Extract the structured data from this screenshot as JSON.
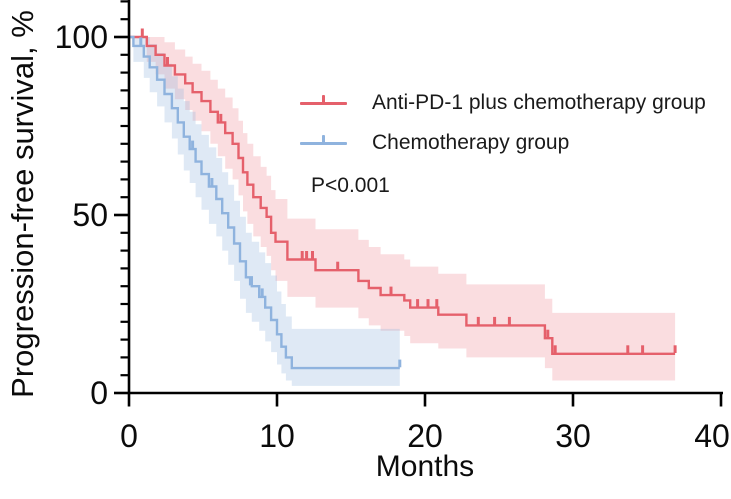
{
  "figure": {
    "ylabel": "Progression-free survival, %",
    "xlabel": "Months",
    "p_value": "P<0.001"
  },
  "legend": [
    {
      "label": "Anti-PD-1 plus chemotherapy group",
      "color": "#e5606b"
    },
    {
      "label": "Chemotherapy group",
      "color": "#8fb3de"
    }
  ],
  "chart_data": {
    "type": "line",
    "subtype": "kaplan-meier-step-with-ci",
    "title": "",
    "xlabel": "Months",
    "ylabel": "Progression-free survival, %",
    "xlim": [
      0,
      40
    ],
    "ylim": [
      0,
      111
    ],
    "xticks": [
      0,
      10,
      20,
      30,
      40
    ],
    "yticks": [
      0,
      50,
      100
    ],
    "y_minor_step": 5,
    "grid": false,
    "legend_position": "upper-right-inside",
    "annotations": [
      {
        "text": "P<0.001"
      }
    ],
    "series": [
      {
        "name": "Anti-PD-1 plus chemotherapy group",
        "color": "#e5606b",
        "band_color": "rgba(237,130,141,0.27)",
        "end_time": 36.9,
        "steps_t_s_ciu_cil": [
          [
            0,
            100,
            100,
            100
          ],
          [
            1.2,
            97.5,
            100,
            93
          ],
          [
            1.8,
            95,
            100,
            89.5
          ],
          [
            2.4,
            92,
            98.5,
            85.5
          ],
          [
            3.1,
            89.5,
            96.5,
            82.5
          ],
          [
            3.8,
            87,
            94.5,
            79.5
          ],
          [
            4.3,
            84.5,
            92.5,
            76.5
          ],
          [
            4.9,
            82,
            90.5,
            73.5
          ],
          [
            5.5,
            79,
            88,
            70
          ],
          [
            6.0,
            76,
            85.5,
            66.5
          ],
          [
            6.5,
            73,
            83,
            63
          ],
          [
            7.0,
            70,
            80,
            60
          ],
          [
            7.4,
            66,
            76.5,
            55.5
          ],
          [
            7.7,
            62,
            73,
            51
          ],
          [
            8.0,
            58.5,
            70,
            47.5
          ],
          [
            8.4,
            55,
            66.5,
            44
          ],
          [
            8.9,
            52,
            63.5,
            41
          ],
          [
            9.3,
            49.5,
            61,
            38.5
          ],
          [
            9.6,
            45,
            57,
            34.5
          ],
          [
            9.9,
            42.5,
            54.5,
            31.5
          ],
          [
            10.7,
            37.5,
            49,
            27
          ],
          [
            12.6,
            34.5,
            46,
            24
          ],
          [
            15.5,
            31.5,
            43,
            21
          ],
          [
            16.2,
            29.5,
            41,
            19
          ],
          [
            17.0,
            27.5,
            39,
            17.5
          ],
          [
            18.6,
            26,
            37.5,
            16
          ],
          [
            19.0,
            24,
            35.5,
            14
          ],
          [
            20.9,
            22,
            33.5,
            12.5
          ],
          [
            22.8,
            19,
            30.5,
            10
          ],
          [
            28.1,
            15.4,
            26.5,
            7
          ],
          [
            28.6,
            11,
            22.5,
            3.5
          ]
        ],
        "censor_marks_t_s": [
          [
            0.9,
            100
          ],
          [
            2.6,
            92
          ],
          [
            6.2,
            76
          ],
          [
            11.7,
            37.5
          ],
          [
            12.0,
            37.5
          ],
          [
            12.4,
            37.5
          ],
          [
            14.1,
            34.5
          ],
          [
            17.7,
            27.5
          ],
          [
            19.5,
            24
          ],
          [
            20.2,
            24
          ],
          [
            20.8,
            24
          ],
          [
            23.6,
            19
          ],
          [
            24.7,
            19
          ],
          [
            25.7,
            19
          ],
          [
            28.3,
            15.4
          ],
          [
            28.8,
            11
          ],
          [
            33.7,
            11
          ],
          [
            34.7,
            11
          ],
          [
            36.9,
            11
          ]
        ]
      },
      {
        "name": "Chemotherapy group",
        "color": "#8fb3de",
        "band_color": "rgba(148,181,221,0.30)",
        "end_time": 18.3,
        "steps_t_s_ciu_cil": [
          [
            0,
            100,
            100,
            100
          ],
          [
            0.3,
            97.5,
            100,
            93
          ],
          [
            1.0,
            94.5,
            100,
            88.5
          ],
          [
            1.4,
            91.5,
            98,
            84.5
          ],
          [
            1.9,
            88,
            95.5,
            80.5
          ],
          [
            2.4,
            84,
            92.5,
            76
          ],
          [
            2.9,
            80,
            89,
            71.5
          ],
          [
            3.3,
            76,
            85.5,
            67
          ],
          [
            3.7,
            72,
            82,
            62.5
          ],
          [
            4.1,
            68.5,
            79,
            59
          ],
          [
            4.5,
            65,
            75.5,
            55
          ],
          [
            4.9,
            61.5,
            72.5,
            51.5
          ],
          [
            5.4,
            58,
            69,
            47.5
          ],
          [
            5.9,
            54.5,
            66,
            44
          ],
          [
            6.3,
            50.5,
            62,
            40
          ],
          [
            6.7,
            46.5,
            58.5,
            36
          ],
          [
            7.1,
            42,
            54,
            31.5
          ],
          [
            7.5,
            37,
            49.5,
            26.5
          ],
          [
            7.9,
            32.5,
            45,
            22.5
          ],
          [
            8.3,
            30,
            42.5,
            20
          ],
          [
            8.8,
            27,
            39.5,
            17.5
          ],
          [
            9.2,
            24,
            36.5,
            14.5
          ],
          [
            9.6,
            20.5,
            33,
            11.5
          ],
          [
            10.0,
            16.5,
            28.5,
            8
          ],
          [
            10.3,
            13,
            25,
            5.5
          ],
          [
            10.6,
            10,
            21.5,
            3.5
          ],
          [
            11.0,
            7,
            18,
            2
          ]
        ],
        "censor_marks_t_s": [
          [
            0.8,
            97.5
          ],
          [
            4.3,
            68.5
          ],
          [
            5.6,
            58
          ],
          [
            8.2,
            30
          ],
          [
            9.0,
            27
          ],
          [
            18.3,
            7
          ]
        ]
      }
    ]
  }
}
